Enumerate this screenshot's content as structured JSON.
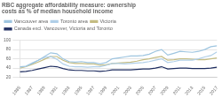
{
  "chart_data": {
    "type": "line",
    "title": "RBC aggregate affordability measure: ownership costs as % of median household income",
    "x": [
      1985,
      1986,
      1987,
      1988,
      1989,
      1990,
      1991,
      1992,
      1993,
      1994,
      1995,
      1996,
      1997,
      1998,
      1999,
      2000,
      2001,
      2002,
      2003,
      2004,
      2005,
      2006,
      2007,
      2008,
      2009,
      2010,
      2011,
      2012,
      2013,
      2014,
      2015,
      2016,
      2017
    ],
    "series": [
      {
        "name": "Vancouver area",
        "color": "#9ec5e0",
        "values": [
          43,
          44,
          50,
          57,
          65,
          73,
          71,
          60,
          54,
          53,
          54,
          52,
          52,
          49,
          52,
          60,
          62,
          64,
          66,
          66,
          67,
          70,
          76,
          80,
          68,
          72,
          76,
          75,
          74,
          76,
          80,
          86,
          88
        ]
      },
      {
        "name": "Toronto area",
        "color": "#b0cfe8",
        "values": [
          42,
          44,
          51,
          57,
          63,
          65,
          59,
          49,
          44,
          43,
          43,
          42,
          43,
          43,
          46,
          50,
          50,
          49,
          50,
          51,
          52,
          54,
          57,
          60,
          52,
          54,
          57,
          57,
          57,
          60,
          64,
          67,
          75
        ]
      },
      {
        "name": "Victoria",
        "color": "#c4bc82",
        "values": [
          40,
          43,
          48,
          53,
          59,
          65,
          65,
          57,
          52,
          50,
          50,
          49,
          49,
          46,
          47,
          50,
          51,
          52,
          53,
          55,
          58,
          60,
          63,
          65,
          57,
          58,
          60,
          60,
          59,
          58,
          58,
          60,
          62
        ]
      },
      {
        "name": "Canada excl. Vancouver, Victoria and Toronto",
        "color": "#1c2b5e",
        "values": [
          32,
          33,
          35,
          38,
          41,
          44,
          43,
          39,
          36,
          35,
          35,
          34,
          34,
          33,
          34,
          36,
          36,
          36,
          36,
          37,
          38,
          38,
          40,
          43,
          38,
          39,
          40,
          40,
          39,
          39,
          39,
          40,
          42
        ]
      }
    ],
    "xlim": [
      1985,
      2017
    ],
    "xticks": [
      1985,
      1987,
      1989,
      1991,
      1993,
      1995,
      1997,
      1999,
      2001,
      2003,
      2005,
      2007,
      2009,
      2011,
      2013,
      2015,
      2017
    ],
    "ylim": [
      20,
      100
    ],
    "yticks": [
      20,
      40,
      60,
      80,
      100
    ],
    "grid": true,
    "legend": "top"
  }
}
